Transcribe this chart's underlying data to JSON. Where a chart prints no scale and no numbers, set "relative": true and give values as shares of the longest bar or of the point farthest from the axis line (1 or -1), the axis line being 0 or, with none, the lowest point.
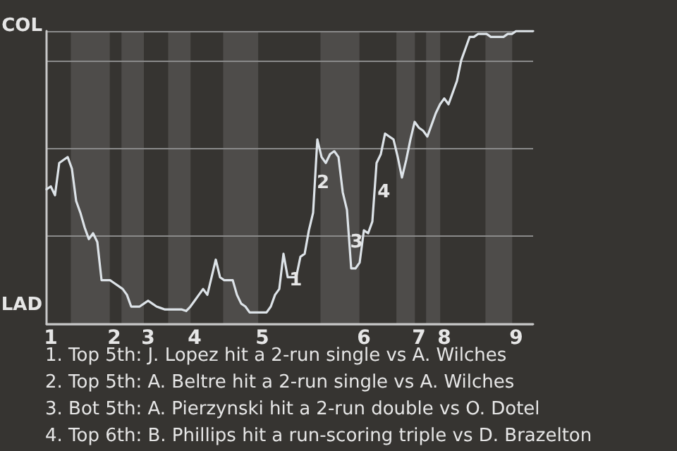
{
  "chart_data": {
    "type": "line",
    "relative": true,
    "categories": [
      null,
      "1",
      null,
      null,
      null,
      null,
      null,
      null,
      null,
      null,
      null,
      null,
      null,
      null,
      null,
      null,
      "2",
      null,
      null,
      null,
      null,
      null,
      null,
      null,
      "3",
      null,
      null,
      null,
      null,
      null,
      null,
      null,
      null,
      null,
      null,
      "4",
      null,
      null,
      null,
      null,
      null,
      null,
      null,
      null,
      null,
      null,
      null,
      null,
      null,
      null,
      null,
      "5",
      null,
      null,
      null,
      null,
      null,
      null,
      null,
      null,
      null,
      null,
      null,
      null,
      null,
      null,
      null,
      null,
      null,
      null,
      null,
      null,
      null,
      null,
      null,
      "6",
      null,
      null,
      null,
      null,
      null,
      null,
      null,
      null,
      null,
      null,
      null,
      null,
      "7",
      null,
      null,
      null,
      null,
      null,
      "8",
      null,
      null,
      null,
      null,
      null,
      null,
      null,
      null,
      null,
      null,
      null,
      null,
      null,
      null,
      null,
      null,
      "9",
      null,
      null,
      null,
      null
    ],
    "series": [
      {
        "color": "#dde3e8",
        "values": [
          0.46,
          0.47,
          0.44,
          0.55,
          0.56,
          0.57,
          0.53,
          0.42,
          0.38,
          0.33,
          0.29,
          0.31,
          0.28,
          0.15,
          0.15,
          0.15,
          0.14,
          0.13,
          0.12,
          0.1,
          0.06,
          0.06,
          0.06,
          0.07,
          0.08,
          0.07,
          0.06,
          0.055,
          0.05,
          0.05,
          0.05,
          0.05,
          0.05,
          0.045,
          0.06,
          0.08,
          0.1,
          0.12,
          0.1,
          0.16,
          0.22,
          0.16,
          0.15,
          0.15,
          0.15,
          0.1,
          0.07,
          0.06,
          0.04,
          0.04,
          0.04,
          0.04,
          0.04,
          0.06,
          0.1,
          0.12,
          0.24,
          0.16,
          0.16,
          0.16,
          0.23,
          0.24,
          0.32,
          0.38,
          0.63,
          0.57,
          0.55,
          0.58,
          0.59,
          0.57,
          0.45,
          0.39,
          0.19,
          0.19,
          0.21,
          0.32,
          0.31,
          0.35,
          0.55,
          0.58,
          0.65,
          0.64,
          0.63,
          0.57,
          0.5,
          0.56,
          0.63,
          0.69,
          0.67,
          0.66,
          0.64,
          0.68,
          0.72,
          0.75,
          0.77,
          0.75,
          0.79,
          0.83,
          0.9,
          0.94,
          0.98,
          0.98,
          0.99,
          0.99,
          0.99,
          0.98,
          0.98,
          0.98,
          0.98,
          0.99,
          0.99,
          1,
          1,
          1,
          1,
          1
        ]
      }
    ],
    "grid": "y",
    "marker": "none",
    "line_style": "solid",
    "annotations": [
      "COL",
      "LAD",
      "1",
      "2",
      "3",
      "4",
      "1. Top 5th: J. Lopez hit a 2-run single vs A. Wilches",
      "2. Top 5th: A. Beltre hit a 2-run single vs A. Wilches",
      "3. Bot 5th: A. Pierzynski hit a 2-run double vs O. Dotel",
      "4. Top 6th: B. Phillips hit a run-scoring triple vs D. Brazelton"
    ]
  }
}
